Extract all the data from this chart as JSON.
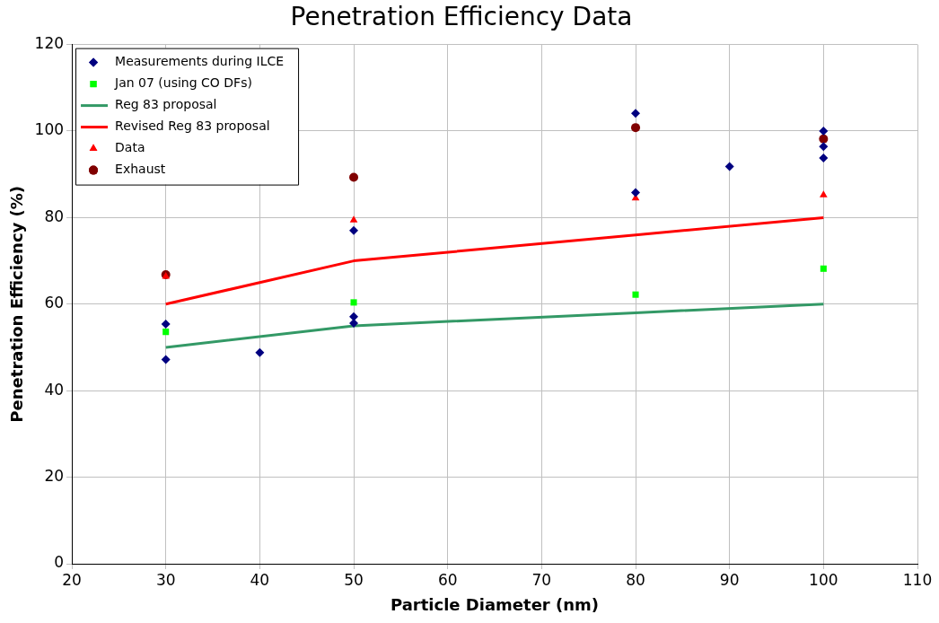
{
  "chart_data": {
    "type": "scatter",
    "title": "Penetration Efficiency Data",
    "xlabel": "Particle Diameter (nm)",
    "ylabel": "Penetration Efficiency (%)",
    "xlim": [
      20,
      110
    ],
    "xticks": [
      20,
      30,
      40,
      50,
      60,
      70,
      80,
      90,
      100,
      110
    ],
    "ylim": [
      0,
      120
    ],
    "yticks": [
      0,
      20,
      40,
      60,
      80,
      100,
      120
    ],
    "grid": true,
    "legend": "top left",
    "series": [
      {
        "name": "Measurements during ILCE",
        "marker": "diamond",
        "color": "#000080",
        "x": [
          30,
          30,
          40,
          50,
          50,
          50,
          80,
          80,
          90,
          100,
          100,
          100
        ],
        "values": [
          55.4,
          47.2,
          48.8,
          77,
          57.1,
          55.6,
          104.1,
          85.8,
          91.8,
          100,
          96.4,
          93.8
        ]
      },
      {
        "name": "Jan 07 (using CO DFs)",
        "marker": "square",
        "color": "#00ff00",
        "x": [
          30,
          50,
          80,
          100
        ],
        "values": [
          53.6,
          60.4,
          62.2,
          68.2
        ]
      },
      {
        "name": "Reg 83 proposal",
        "type": "line",
        "marker": "none",
        "color": "#339966",
        "x": [
          30,
          50,
          80,
          100
        ],
        "values": [
          50,
          55,
          58,
          60
        ]
      },
      {
        "name": "Revised Reg 83 proposal",
        "type": "line",
        "marker": "none",
        "color": "#ff0000",
        "x": [
          30,
          50,
          80,
          100
        ],
        "values": [
          60,
          70,
          76,
          80
        ]
      },
      {
        "name": "Data",
        "marker": "triangle",
        "color": "#ff0000",
        "x": [
          30,
          50,
          80,
          100
        ],
        "values": [
          66.4,
          79.4,
          84.5,
          85.2
        ]
      },
      {
        "name": "Exhaust",
        "marker": "circle",
        "color": "#800000",
        "x": [
          30,
          50,
          80,
          100
        ],
        "values": [
          66.8,
          89.3,
          100.8,
          98.2
        ]
      }
    ]
  }
}
